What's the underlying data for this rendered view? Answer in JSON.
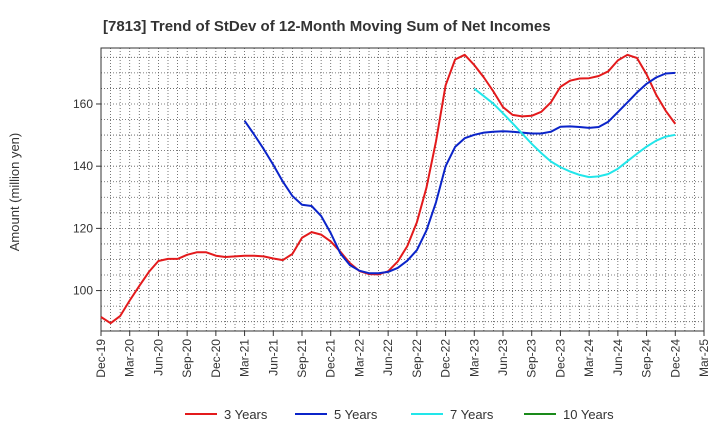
{
  "chart_data": {
    "type": "line",
    "title": "[7813]  Trend of StDev of 12-Month Moving Sum of Net Incomes",
    "xlabel": "",
    "ylabel": "Amount (million yen)",
    "x_tick_labels": [
      "Dec-19",
      "Mar-20",
      "Jun-20",
      "Sep-20",
      "Dec-20",
      "Mar-21",
      "Jun-21",
      "Sep-21",
      "Dec-21",
      "Mar-22",
      "Jun-22",
      "Sep-22",
      "Dec-22",
      "Mar-23",
      "Jun-23",
      "Sep-23",
      "Dec-23",
      "Mar-24",
      "Jun-24",
      "Sep-24",
      "Dec-24",
      "Mar-25"
    ],
    "y_ticks": [
      100,
      120,
      140,
      160
    ],
    "ylim": [
      87,
      178
    ],
    "grid": true,
    "legend_position": "bottom",
    "series": [
      {
        "name": "3 Years",
        "color": "#e31a1c",
        "start_month": 0,
        "values": [
          91.5,
          89.5,
          91.8,
          96.8,
          101.5,
          106,
          109.5,
          110.2,
          110.2,
          111.5,
          112.3,
          112.3,
          111.2,
          110.8,
          111,
          111.2,
          111.2,
          111,
          110.3,
          109.8,
          111.8,
          117,
          118.8,
          118,
          115.8,
          112.5,
          108.8,
          106.3,
          105.3,
          105.2,
          106.2,
          109.3,
          114.3,
          122,
          133,
          148,
          166,
          174.3,
          175.8,
          172.5,
          168.5,
          164,
          159,
          156.5,
          156,
          156.2,
          157.5,
          160.5,
          165.5,
          167.5,
          168.2,
          168.3,
          169,
          170.5,
          174,
          175.8,
          174.8,
          169.5,
          163,
          157.8,
          153.6
        ]
      },
      {
        "name": "5 Years",
        "color": "#0b24c9",
        "start_month": 15,
        "values": [
          154.6,
          150.2,
          145.5,
          140.4,
          135,
          130.4,
          127.6,
          127.2,
          124,
          118.5,
          112,
          108.2,
          106.4,
          105.6,
          105.6,
          106,
          107.3,
          109.6,
          113,
          119.3,
          128.4,
          140,
          146.2,
          149,
          150.1,
          150.8,
          151.1,
          151.2,
          151.1,
          150.8,
          150.5,
          150.5,
          151.1,
          152.7,
          152.8,
          152.6,
          152.3,
          152.6,
          154.3,
          157.4,
          160.5,
          163.7,
          166.5,
          168.5,
          169.8,
          170
        ]
      },
      {
        "name": "7 Years",
        "color": "#22e6ea",
        "start_month": 39,
        "values": [
          164.9,
          162.5,
          160.1,
          157,
          153.8,
          150.5,
          147.2,
          144.2,
          141.5,
          139.7,
          138.3,
          137.2,
          136.5,
          136.7,
          137.5,
          139.2,
          141.6,
          144,
          146.3,
          148.2,
          149.5,
          150.1
        ]
      },
      {
        "name": "10 Years",
        "color": "#1a8a1a",
        "start_month": 0,
        "values": []
      }
    ]
  }
}
